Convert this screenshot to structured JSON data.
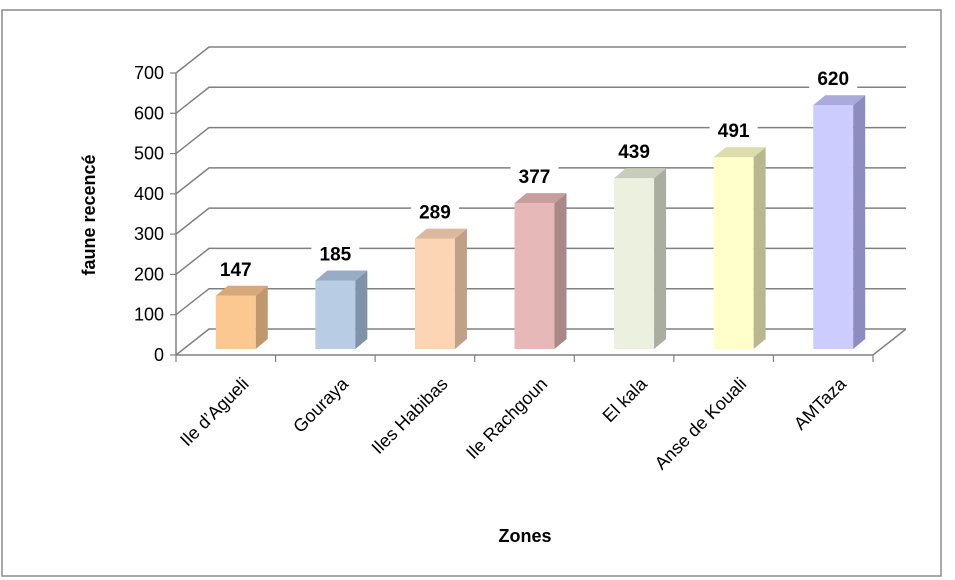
{
  "chart_data": {
    "type": "bar",
    "title": "",
    "xlabel": "Zones",
    "ylabel": "faune recencé",
    "categories": [
      "Ile d’Agueli",
      "Gouraya",
      "Iles Habibas",
      "Ile Rachgoun",
      "El kala",
      "Anse de Kouali",
      "AMTaza"
    ],
    "values": [
      147,
      185,
      289,
      377,
      439,
      491,
      620
    ],
    "ylim": [
      0,
      700
    ],
    "yticks": [
      0,
      100,
      200,
      300,
      400,
      500,
      600,
      700
    ],
    "grid": true,
    "legend": "none",
    "style": "3d-column",
    "colors": [
      "#fcc891",
      "#b8cce4",
      "#fcd5b5",
      "#e6b9b8",
      "#ebf1de",
      "#ffffcc",
      "#ccccff"
    ],
    "side_colors": [
      "#c09870",
      "#7e93aa",
      "#c1a088",
      "#a98888",
      "#a9aea0",
      "#b8b890",
      "#8c8cc0"
    ],
    "top_colors": [
      "#d9a878",
      "#98adc4",
      "#dcb99e",
      "#c89d9c",
      "#c8ccbc",
      "#dcdcac",
      "#aaaadd"
    ],
    "wall_line_color": "#808080"
  }
}
